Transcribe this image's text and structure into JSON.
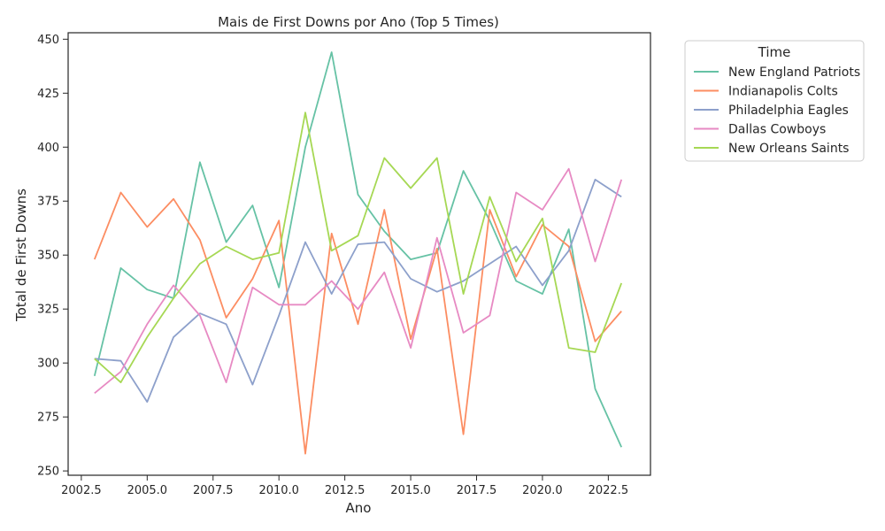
{
  "chart_data": {
    "type": "line",
    "title": "Mais  de First Downs por Ano (Top 5 Times)",
    "xlabel": "Ano",
    "ylabel": "Total de First Downs",
    "xlim": [
      2002.0,
      2024.1
    ],
    "ylim": [
      248,
      453
    ],
    "x_ticks": [
      2002.5,
      2005.0,
      2007.5,
      2010.0,
      2012.5,
      2015.0,
      2017.5,
      2020.0,
      2022.5
    ],
    "x_tick_labels": [
      "2002.5",
      "2005.0",
      "2007.5",
      "2010.0",
      "2012.5",
      "2015.0",
      "2017.5",
      "2020.0",
      "2022.5"
    ],
    "y_ticks": [
      250,
      275,
      300,
      325,
      350,
      375,
      400,
      425,
      450
    ],
    "y_tick_labels": [
      "250",
      "275",
      "300",
      "325",
      "350",
      "375",
      "400",
      "425",
      "450"
    ],
    "grid": false,
    "legend": {
      "title": "Time",
      "placement": "outside-right-top"
    },
    "x": [
      2003,
      2004,
      2005,
      2006,
      2007,
      2008,
      2009,
      2010,
      2011,
      2012,
      2013,
      2014,
      2015,
      2016,
      2017,
      2018,
      2019,
      2020,
      2021,
      2022,
      2023
    ],
    "series": [
      {
        "name": "New England Patriots",
        "color": "#66c2a5",
        "values": [
          294,
          344,
          334,
          330,
          393,
          356,
          373,
          335,
          400,
          444,
          378,
          361,
          348,
          351,
          389,
          366,
          338,
          332,
          362,
          288,
          261
        ]
      },
      {
        "name": "Indianapolis Colts",
        "color": "#fc8d62",
        "values": [
          348,
          379,
          363,
          376,
          357,
          321,
          339,
          366,
          258,
          360,
          318,
          371,
          311,
          353,
          267,
          371,
          340,
          364,
          354,
          310,
          324
        ]
      },
      {
        "name": "Philadelphia Eagles",
        "color": "#8da0cb",
        "values": [
          302,
          301,
          282,
          312,
          323,
          318,
          290,
          322,
          356,
          332,
          355,
          356,
          339,
          333,
          338,
          346,
          354,
          336,
          352,
          385,
          377
        ]
      },
      {
        "name": "Dallas Cowboys",
        "color": "#e78ac3",
        "values": [
          286,
          296,
          318,
          336,
          322,
          291,
          335,
          327,
          327,
          338,
          325,
          342,
          307,
          358,
          314,
          322,
          379,
          371,
          390,
          347,
          385
        ]
      },
      {
        "name": "New Orleans Saints",
        "color": "#a6d854",
        "values": [
          302,
          291,
          312,
          330,
          346,
          354,
          348,
          351,
          416,
          352,
          359,
          395,
          381,
          395,
          332,
          377,
          347,
          367,
          307,
          305,
          337
        ]
      }
    ]
  }
}
